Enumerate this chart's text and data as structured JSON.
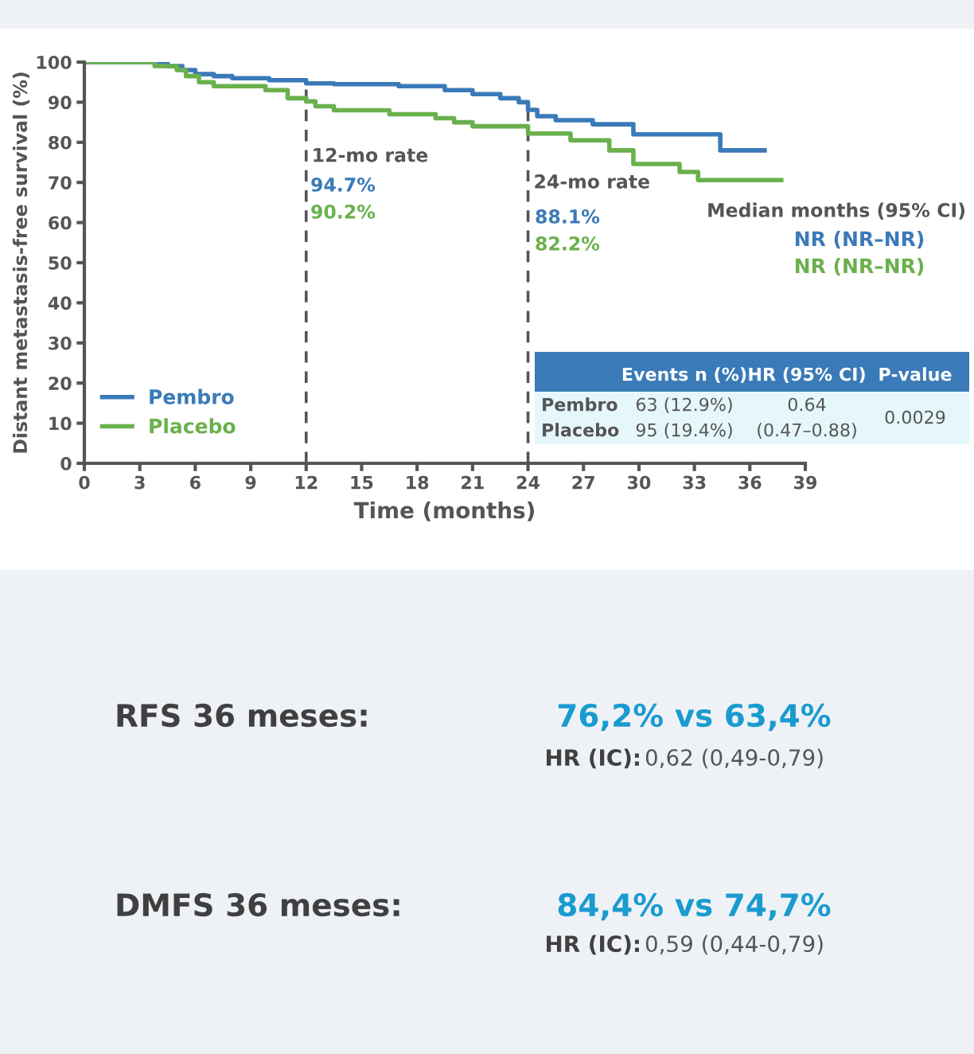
{
  "chart_data": {
    "type": "step",
    "xlabel": "Time (months)",
    "ylabel": "Distant metastasis-free survival (%)",
    "xlim": [
      0,
      39
    ],
    "xticks": [
      0,
      3,
      6,
      9,
      12,
      15,
      18,
      21,
      24,
      27,
      30,
      33,
      36,
      39
    ],
    "ylim": [
      0,
      100
    ],
    "yticks": [
      0,
      10,
      20,
      30,
      40,
      50,
      60,
      70,
      80,
      90,
      100
    ],
    "grid": false,
    "legend": "bottom left",
    "series": [
      {
        "name": "Pembro",
        "color": "#3a7ab8",
        "x": [
          0,
          4.5,
          5.3,
          6,
          7,
          8,
          10,
          12,
          13.5,
          17,
          19.5,
          21,
          22.5,
          23.5,
          24,
          24.5,
          25.5,
          27.5,
          29.7,
          34.4,
          36.8
        ],
        "values": [
          100,
          99,
          98,
          97,
          96.5,
          96,
          95.5,
          94.7,
          94.5,
          94,
          93,
          92,
          91,
          90,
          88.1,
          86.5,
          85.5,
          84.5,
          82,
          78,
          78
        ]
      },
      {
        "name": "Placebo",
        "color": "#6ab04c",
        "x": [
          0,
          3.8,
          5,
          5.5,
          6.2,
          7,
          9.8,
          11,
          12,
          12.5,
          13.5,
          16.5,
          19,
          20,
          21,
          24,
          26.3,
          28.4,
          29.7,
          32.2,
          33.2,
          37.7
        ],
        "values": [
          100,
          99,
          98,
          96.5,
          95,
          94,
          93,
          91,
          90.2,
          89,
          88,
          87,
          86,
          85,
          84,
          82.2,
          80.5,
          78,
          74.6,
          72.6,
          70.6,
          70.6
        ]
      }
    ],
    "ref_lines": [
      {
        "axis": "x",
        "value": 12,
        "label": "12-mo rate",
        "color": "#555555",
        "line_style": "dashed"
      },
      {
        "axis": "x",
        "value": 24,
        "label": "24-mo rate",
        "color": "#555555",
        "line_style": "dashed"
      }
    ],
    "annotations": [
      "94.7%",
      "90.2%",
      "88.1%",
      "82.2%",
      "Median months (95% CI)",
      "NR (NR–NR)",
      "NR (NR–NR)",
      "Events n (%)",
      "HR (95% CI)",
      "P-value",
      "Pembro",
      "63 (12.9%)",
      "0.64",
      "Placebo",
      "95 (19.4%)",
      "(0.47–0.88)",
      "0.0029",
      "RFS 36 meses:",
      "76,2% vs 63,4%",
      "HR (IC):",
      "0,62 (0,49-0,79)",
      "DMFS 36 meses:",
      "84,4% vs 74,7%",
      "HR (IC):",
      "0,59 (0,44-0,79)"
    ]
  }
}
